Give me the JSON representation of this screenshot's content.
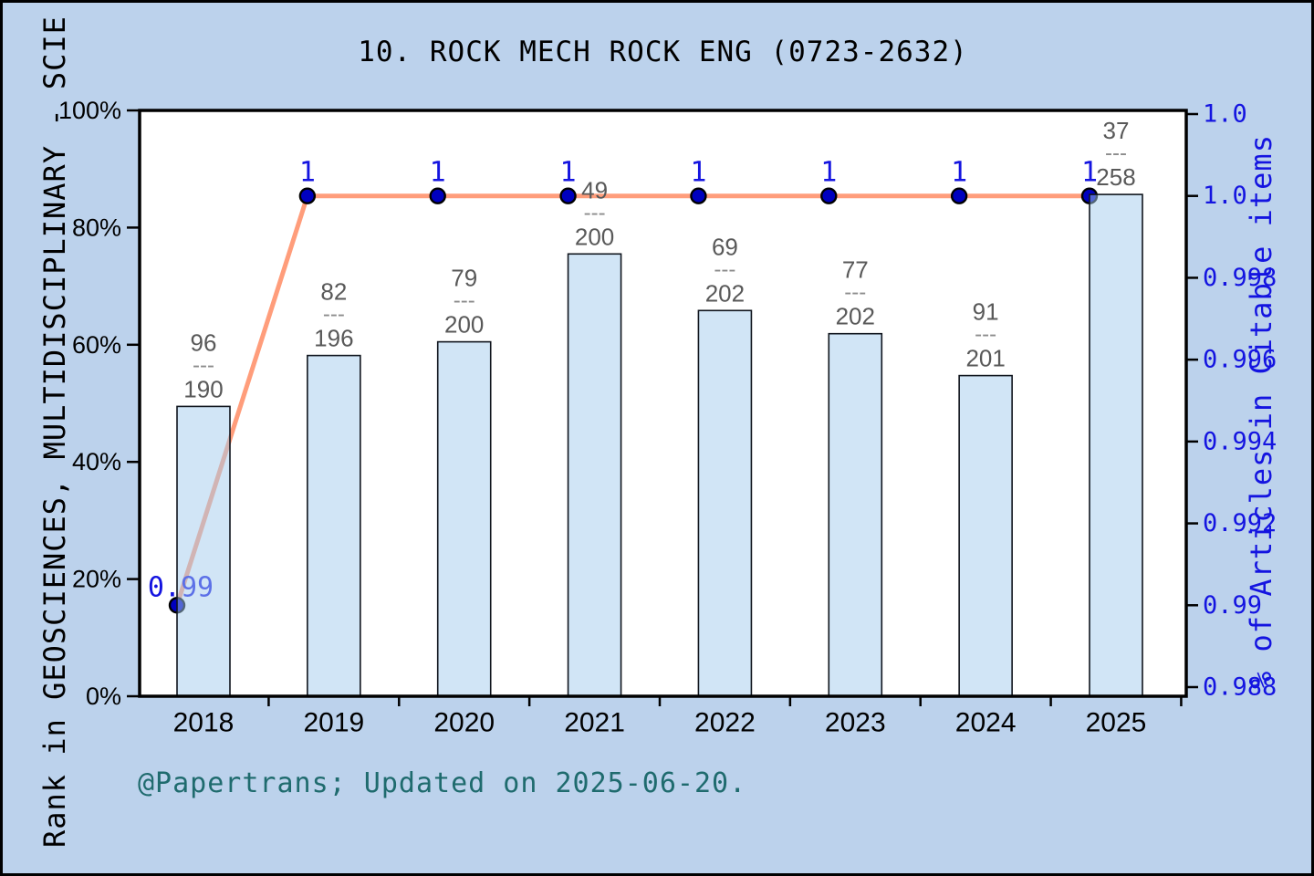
{
  "title": "10. ROCK MECH ROCK ENG (0723-2632)",
  "annotation": "@Papertrans; Updated on 2025-06-20.",
  "colors": {
    "background": "#bcd2ec",
    "plot_bg": "#ffffff",
    "bar_fill_rgba": "rgba(164,204,238,0.5)",
    "bar_edge": "#10151d",
    "line": "#ff9d7b",
    "marker": "#0000bf",
    "marker_edge": "#000000",
    "blue_text": "#1414e0",
    "fraction_text": "#595959",
    "dash_text": "#8c8c8c",
    "axis_text": "#000000",
    "annotation_text": "#1f6b6e",
    "spine": "#000000"
  },
  "chart_data": {
    "type": "bar",
    "title": "10. ROCK MECH ROCK ENG (0723-2632)",
    "categories": [
      "2018",
      "2019",
      "2020",
      "2021",
      "2022",
      "2023",
      "2024",
      "2025"
    ],
    "grid": false,
    "legend": false,
    "left_axis": {
      "label": "Rank in GEOSCIENCES, MULTIDISCIPLINARY - SCIE",
      "ticks": [
        "100%",
        "80%",
        "60%",
        "40%",
        "20%",
        "0%"
      ],
      "range": [
        0,
        100
      ]
    },
    "right_axis": {
      "label": "% of Articles in Citable items",
      "ticks": [
        "1.0",
        "1.0",
        "0.998",
        "0.996",
        "0.994",
        "0.992",
        "0.99",
        "0.988"
      ],
      "range": [
        0.988,
        1.002
      ]
    },
    "series": [
      {
        "name": "Rank in GEOSCIENCES, MULTIDISCIPLINARY - SCIE",
        "type": "bar",
        "axis": "left",
        "values_percent": [
          49.47,
          58.16,
          60.5,
          75.5,
          65.84,
          61.88,
          54.73,
          85.66
        ],
        "fraction_labels": [
          "96/190",
          "82/196",
          "79/200",
          "49/200",
          "69/202",
          "77/202",
          "91/201",
          "37/258"
        ]
      },
      {
        "name": "% of Articles in Citable items",
        "type": "line",
        "axis": "right",
        "values": [
          0.99,
          1,
          1,
          1,
          1,
          1,
          1,
          1
        ],
        "point_labels": [
          "0.99",
          "1",
          "1",
          "1",
          "1",
          "1",
          "1",
          "1"
        ]
      }
    ]
  }
}
